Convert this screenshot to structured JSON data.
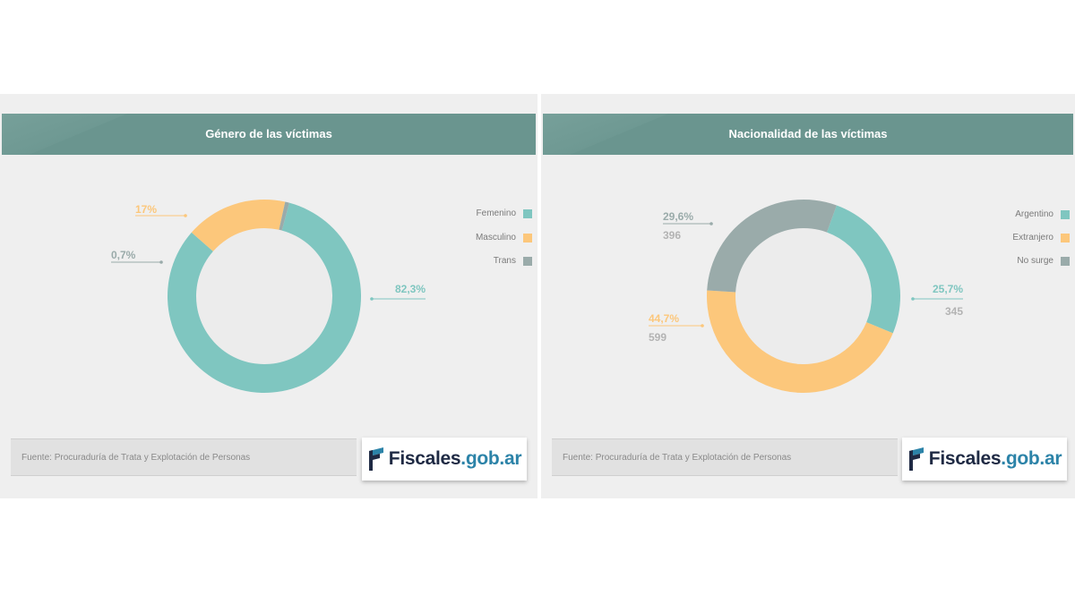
{
  "chart_data": [
    {
      "type": "pie",
      "title": "Género de las víctimas",
      "categories": [
        "Femenino",
        "Masculino",
        "Trans"
      ],
      "values": [
        82.3,
        17,
        0.7
      ],
      "labels": [
        "82,3%",
        "17%",
        "0,7%"
      ],
      "counts": [],
      "colors": [
        "#7fc6c0",
        "#fcc77b",
        "#9aabaa"
      ],
      "legend": "top-right"
    },
    {
      "type": "pie",
      "title": "Nacionalidad de las víctimas",
      "categories": [
        "Argentino",
        "Extranjero",
        "No surge"
      ],
      "values": [
        25.7,
        44.7,
        29.6
      ],
      "labels": [
        "25,7%",
        "44,7%",
        "29,6%"
      ],
      "counts": [
        "345",
        "599",
        "396"
      ],
      "colors": [
        "#7fc6c0",
        "#fcc77b",
        "#9aabaa"
      ],
      "legend": "top-right"
    }
  ],
  "footer": {
    "source": "Fuente: Procuraduría de Trata y Explotación de Personas",
    "logo_main": "Fiscales",
    "logo_accent": ".gob.ar"
  }
}
